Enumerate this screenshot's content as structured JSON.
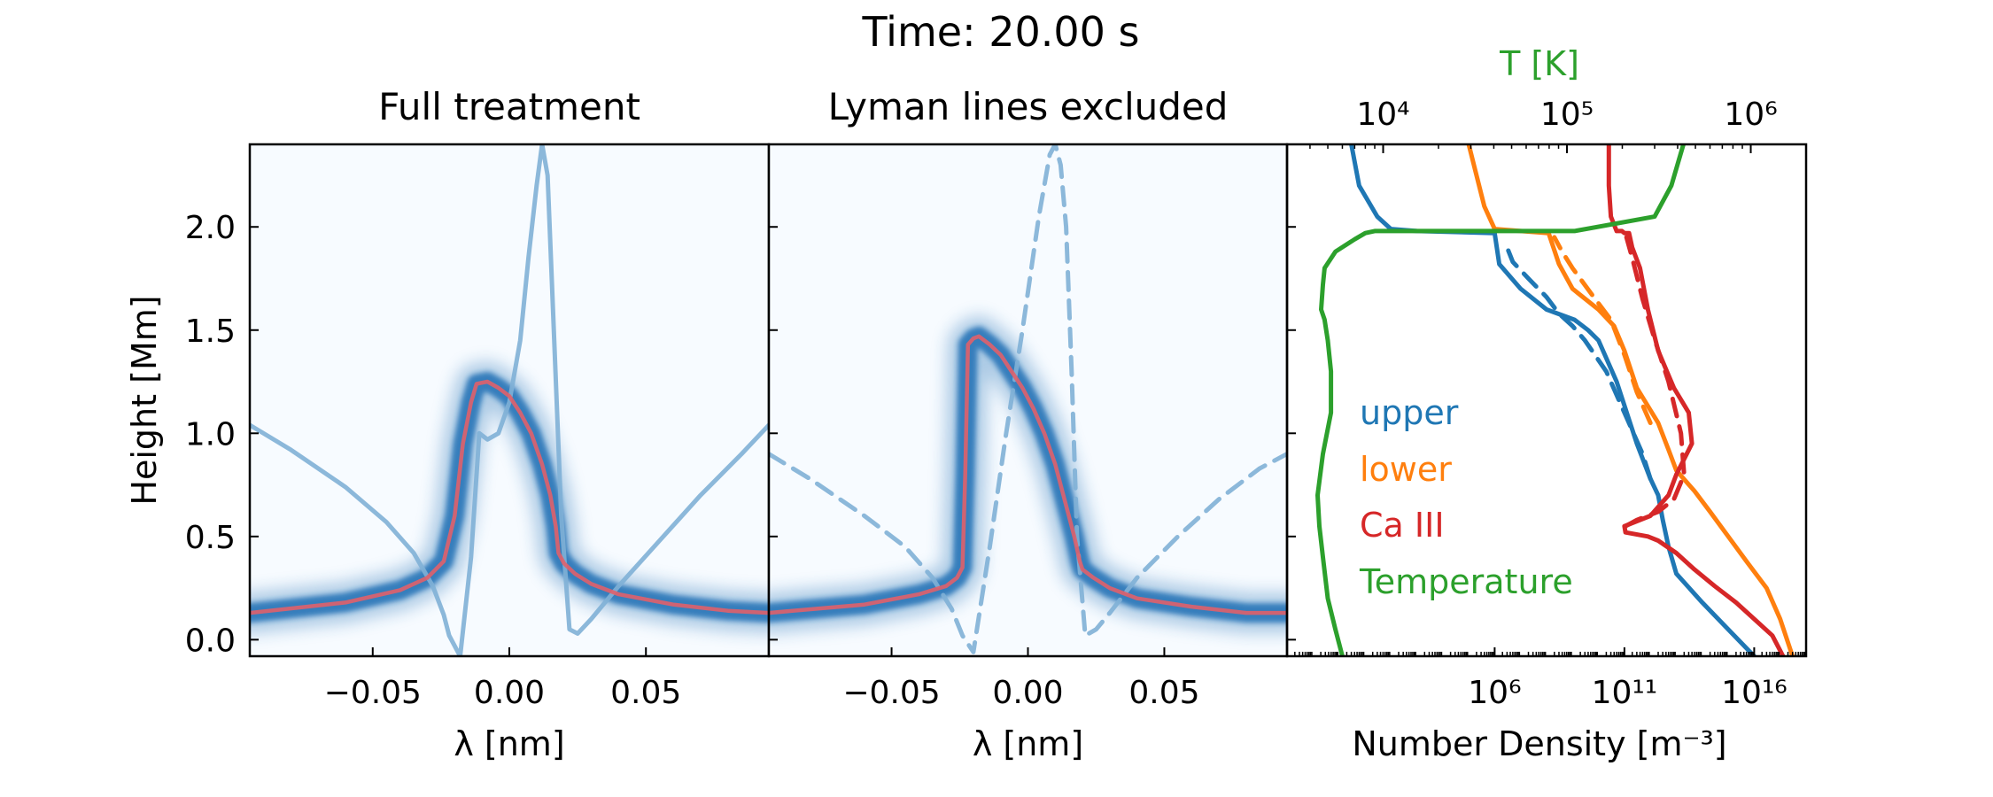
{
  "suptitle": "Time: 20.00 s",
  "colors": {
    "upper": "#1f77b4",
    "lower": "#ff7f0e",
    "ca": "#d62728",
    "temperature": "#2ca02c",
    "core": "#7fb0d6",
    "formation": "#e0606a",
    "density_low": "#f7fbff",
    "density_high": "#2171b5"
  },
  "chart_data": [
    {
      "type": "heatmap",
      "title": "Full treatment",
      "xlabel": "λ [nm]",
      "ylabel": "Height [Mm]",
      "xlim": [
        -0.095,
        0.095
      ],
      "ylim": [
        -0.08,
        2.4
      ],
      "xticks": [
        -0.05,
        0.0,
        0.05
      ],
      "xtick_labels": [
        "−0.05",
        "0.00",
        "0.05"
      ],
      "yticks": [
        0.0,
        0.5,
        1.0,
        1.5,
        2.0
      ],
      "ytick_labels": [
        "0.0",
        "0.5",
        "1.0",
        "1.5",
        "2.0"
      ],
      "series": [
        {
          "style": "solid",
          "x": [
            -0.095,
            -0.08,
            -0.06,
            -0.045,
            -0.035,
            -0.028,
            -0.024,
            -0.022,
            -0.018,
            -0.014,
            -0.011,
            -0.008,
            -0.004,
            0.0,
            0.004,
            0.007,
            0.01,
            0.012,
            0.014,
            0.016,
            0.019,
            0.022,
            0.025,
            0.03,
            0.04,
            0.055,
            0.07,
            0.085,
            0.095
          ],
          "y": [
            1.04,
            0.92,
            0.74,
            0.57,
            0.42,
            0.26,
            0.12,
            0.02,
            -0.08,
            0.4,
            1.0,
            0.97,
            1.0,
            1.15,
            1.45,
            1.85,
            2.2,
            2.4,
            2.25,
            1.6,
            0.6,
            0.05,
            0.03,
            0.1,
            0.26,
            0.48,
            0.7,
            0.9,
            1.04
          ]
        },
        {
          "style": "formation",
          "x": [
            -0.095,
            -0.06,
            -0.04,
            -0.03,
            -0.024,
            -0.02,
            -0.017,
            -0.014,
            -0.012,
            -0.008,
            -0.004,
            0.0,
            0.004,
            0.008,
            0.012,
            0.015,
            0.017,
            0.018,
            0.02,
            0.024,
            0.03,
            0.04,
            0.06,
            0.08,
            0.095
          ],
          "y": [
            0.13,
            0.18,
            0.24,
            0.3,
            0.38,
            0.6,
            0.95,
            1.15,
            1.24,
            1.25,
            1.22,
            1.18,
            1.1,
            1.0,
            0.85,
            0.7,
            0.55,
            0.42,
            0.37,
            0.32,
            0.27,
            0.22,
            0.17,
            0.14,
            0.13
          ]
        }
      ]
    },
    {
      "type": "heatmap",
      "title": "Lyman lines excluded",
      "xlabel": "λ [nm]",
      "xlim": [
        -0.095,
        0.095
      ],
      "ylim": [
        -0.08,
        2.4
      ],
      "xticks": [
        -0.05,
        0.0,
        0.05
      ],
      "xtick_labels": [
        "−0.05",
        "0.00",
        "0.05"
      ],
      "yticks": [
        0.0,
        0.5,
        1.0,
        1.5,
        2.0
      ],
      "series": [
        {
          "style": "dashed",
          "x": [
            -0.095,
            -0.08,
            -0.06,
            -0.045,
            -0.035,
            -0.028,
            -0.024,
            -0.02,
            -0.014,
            -0.008,
            -0.002,
            0.004,
            0.008,
            0.01,
            0.012,
            0.014,
            0.016,
            0.018,
            0.021,
            0.025,
            0.03,
            0.04,
            0.055,
            0.07,
            0.085,
            0.095
          ],
          "y": [
            0.9,
            0.78,
            0.6,
            0.45,
            0.3,
            0.15,
            0.02,
            -0.06,
            0.45,
            1.0,
            1.5,
            2.05,
            2.35,
            2.4,
            2.3,
            2.0,
            1.3,
            0.5,
            0.02,
            0.05,
            0.13,
            0.3,
            0.5,
            0.68,
            0.83,
            0.9
          ]
        },
        {
          "style": "formation",
          "x": [
            -0.095,
            -0.06,
            -0.04,
            -0.03,
            -0.026,
            -0.024,
            -0.023,
            -0.022,
            -0.02,
            -0.018,
            -0.014,
            -0.01,
            -0.006,
            -0.002,
            0.002,
            0.006,
            0.01,
            0.014,
            0.017,
            0.019,
            0.02,
            0.024,
            0.03,
            0.04,
            0.06,
            0.08,
            0.095
          ],
          "y": [
            0.13,
            0.17,
            0.22,
            0.26,
            0.3,
            0.35,
            0.8,
            1.43,
            1.46,
            1.47,
            1.43,
            1.38,
            1.3,
            1.22,
            1.12,
            1.0,
            0.85,
            0.65,
            0.5,
            0.38,
            0.34,
            0.3,
            0.25,
            0.2,
            0.16,
            0.13,
            0.13
          ]
        }
      ]
    },
    {
      "type": "line",
      "xlabel": "Number Density [m⁻³]",
      "xscale": "log",
      "xlim": [
        0.01,
        1e+18
      ],
      "ylim": [
        -0.08,
        2.4
      ],
      "xticks": [
        1000000.0,
        100000000000.0,
        1e+16
      ],
      "xtick_labels": [
        "10⁶",
        "10¹¹",
        "10¹⁶"
      ],
      "yticks": [
        0.0,
        0.5,
        1.0,
        1.5,
        2.0
      ],
      "top_axis": {
        "label": "T [K]",
        "scale": "log",
        "lim": [
          3000,
          2000000
        ],
        "ticks": [
          10000,
          100000,
          1000000
        ],
        "tick_labels": [
          "10⁴",
          "10⁵",
          "10⁶"
        ]
      },
      "legend_placement": "center-left",
      "series": [
        {
          "name": "upper",
          "color_key": "upper",
          "axis": "density",
          "style": "solid",
          "x": [
            1e+16,
            1000000000000000.0,
            100000000000000.0,
            10000000000000.0,
            5000000000000.0,
            3000000000000.0,
            2000000000000.0,
            1000000000000.0,
            300000000000.0,
            50000000000.0,
            10000000000.0,
            4000000000.0,
            1200000000.0,
            100000000.0,
            10000000.0,
            1500000.0,
            1000000.0,
            1000.0,
            100.0,
            30.0,
            6.0,
            3.0
          ],
          "y": [
            -0.08,
            0.05,
            0.18,
            0.32,
            0.45,
            0.58,
            0.7,
            0.78,
            0.95,
            1.25,
            1.45,
            1.5,
            1.55,
            1.6,
            1.7,
            1.82,
            1.97,
            1.98,
            1.99,
            2.05,
            2.2,
            2.4
          ]
        },
        {
          "name": "lower",
          "color_key": "lower",
          "axis": "density",
          "style": "solid",
          "x": [
            3e+17,
            1e+17,
            3e+16,
            5000000000000000.0,
            1000000000000000.0,
            200000000000000.0,
            50000000000000.0,
            10000000000000.0,
            5000000000000.0,
            2000000000000.0,
            300000000000.0,
            100000000000.0,
            40000000000.0,
            10000000000.0,
            1000000000.0,
            300000000.0,
            120000000.0,
            10000000.0,
            1000000.0,
            400000.0,
            200000.0,
            100000.0
          ],
          "y": [
            -0.08,
            0.1,
            0.25,
            0.38,
            0.5,
            0.62,
            0.72,
            0.82,
            0.92,
            1.05,
            1.22,
            1.4,
            1.52,
            1.6,
            1.7,
            1.82,
            1.97,
            1.98,
            1.99,
            2.1,
            2.25,
            2.4
          ]
        },
        {
          "name": "Ca III",
          "color_key": "ca",
          "axis": "density",
          "style": "solid",
          "x": [
            1.3e+17,
            5e+16,
            1e+16,
            2000000000000000.0,
            300000000000000.0,
            50000000000000.0,
            10000000000000.0,
            2000000000000.0,
            800000000000.0,
            110000000000.0,
            100000000000.0,
            1000000000000.0,
            5000000000000.0,
            10000000000000.0,
            40000000000000.0,
            30000000000000.0,
            8000000000000.0,
            2000000000000.0,
            800000000000.0,
            400000000000.0,
            200000000000.0,
            150000000000.0,
            100000000000.0,
            80000000000.0,
            50000000000.0,
            30000000000.0,
            25000000000.0,
            25000000000.0
          ],
          "y": [
            -0.08,
            0.02,
            0.1,
            0.18,
            0.26,
            0.34,
            0.42,
            0.48,
            0.5,
            0.52,
            0.55,
            0.6,
            0.7,
            0.8,
            0.95,
            1.1,
            1.22,
            1.4,
            1.6,
            1.8,
            1.9,
            1.97,
            1.97,
            1.98,
            1.98,
            2.05,
            2.2,
            2.4
          ]
        },
        {
          "color_key": "upper",
          "axis": "density",
          "style": "dashed",
          "x": [
            1000000000000.0,
            500000000000.0,
            100000000000.0,
            20000000000.0,
            3000000000.0,
            1000000000.0,
            300000000.0,
            100000000.0,
            20000000.0,
            5000000.0,
            3000000.0
          ],
          "y": [
            0.78,
            0.9,
            1.1,
            1.3,
            1.45,
            1.52,
            1.58,
            1.66,
            1.75,
            1.83,
            1.9
          ]
        },
        {
          "color_key": "lower",
          "axis": "density",
          "style": "dashed",
          "x": [
            1000000000000.0,
            300000000000.0,
            100000000000.0,
            30000000000.0,
            5000000000.0,
            1000000000.0,
            400000000.0,
            200000000.0
          ],
          "y": [
            1.05,
            1.2,
            1.38,
            1.55,
            1.68,
            1.8,
            1.88,
            1.95
          ]
        },
        {
          "color_key": "ca",
          "axis": "density",
          "style": "dashed",
          "x": [
            110000000000.0,
            300000000000.0,
            2000000000000.0,
            8000000000000.0,
            20000000000000.0,
            15000000000000.0,
            5000000000000.0,
            1500000000000.0,
            500000000000.0,
            200000000000.0,
            120000000000.0
          ],
          "y": [
            0.55,
            0.58,
            0.62,
            0.68,
            0.8,
            1.0,
            1.25,
            1.45,
            1.65,
            1.85,
            1.95
          ]
        },
        {
          "name": "Temperature",
          "color_key": "temperature",
          "axis": "temperature",
          "style": "solid",
          "x": [
            6000,
            5500,
            5000,
            4700,
            4500,
            4400,
            4700,
            5200,
            5200,
            5000,
            4800,
            4600,
            4700,
            4800,
            5500,
            7000,
            8000,
            9000,
            110000.0,
            300000.0,
            370000.0,
            430000.0
          ],
          "y": [
            -0.08,
            0.05,
            0.2,
            0.4,
            0.55,
            0.7,
            0.9,
            1.1,
            1.3,
            1.45,
            1.55,
            1.6,
            1.72,
            1.8,
            1.88,
            1.94,
            1.97,
            1.98,
            1.98,
            2.05,
            2.2,
            2.4
          ]
        }
      ]
    }
  ]
}
